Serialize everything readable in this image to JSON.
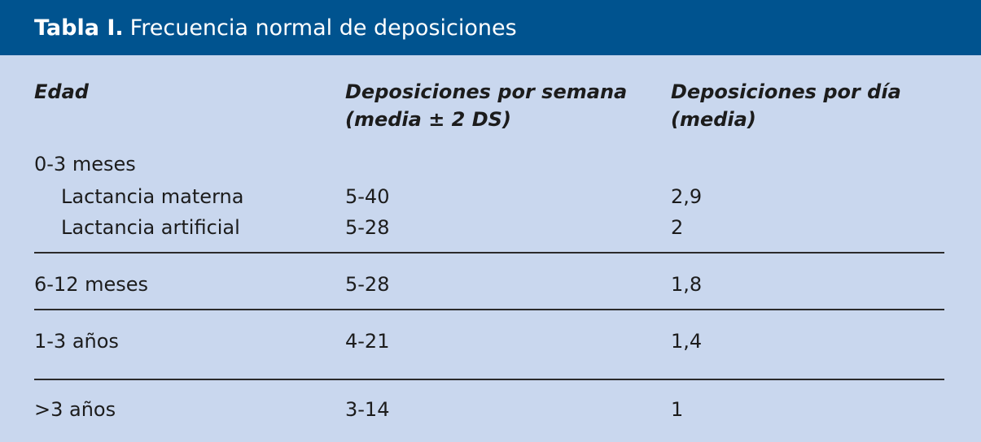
{
  "table": {
    "title_label": "Tabla I.",
    "title_text": "Frecuencia normal de deposiciones",
    "headers": {
      "age": "Edad",
      "week_line1": "Deposiciones por semana",
      "week_line2": "(media ± 2 DS)",
      "day_line1": "Deposiciones por día",
      "day_line2": "(media)"
    },
    "group_0_3": {
      "label": "0-3 meses",
      "rows": [
        {
          "age": "Lactancia materna",
          "week": "5-40",
          "day": "2,9"
        },
        {
          "age": "Lactancia artificial",
          "week": "5-28",
          "day": "2"
        }
      ]
    },
    "rows": [
      {
        "age": "6-12 meses",
        "week": "5-28",
        "day": "1,8"
      },
      {
        "age": "1-3 años",
        "week": "4-21",
        "day": "1,4"
      },
      {
        "age": ">3 años",
        "week": "3-14",
        "day": "1"
      }
    ]
  }
}
